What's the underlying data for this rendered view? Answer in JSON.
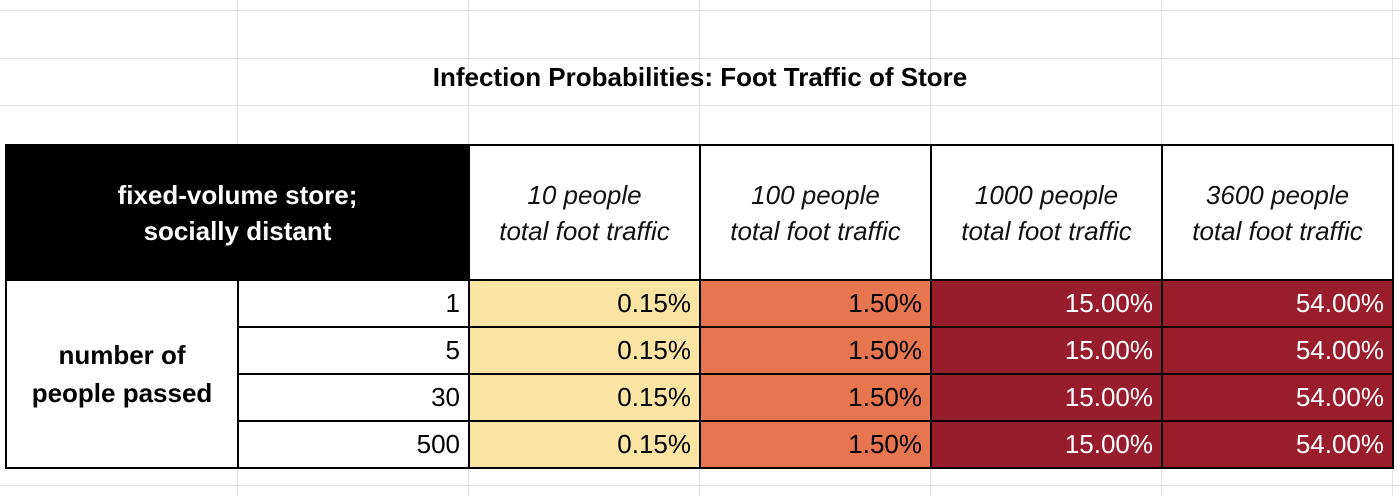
{
  "title": "Infection Probabilities: Foot Traffic of Store",
  "corner_header": "fixed-volume store;\nsocially distant",
  "column_headers": [
    "10 people\ntotal foot traffic",
    "100 people\ntotal foot traffic",
    "1000 people\ntotal foot traffic",
    "3600 people\ntotal foot traffic"
  ],
  "row_group_label": "number of\npeople passed",
  "rows": [
    {
      "people_passed": "1",
      "values": [
        "0.15%",
        "1.50%",
        "15.00%",
        "54.00%"
      ]
    },
    {
      "people_passed": "5",
      "values": [
        "0.15%",
        "1.50%",
        "15.00%",
        "54.00%"
      ]
    },
    {
      "people_passed": "30",
      "values": [
        "0.15%",
        "1.50%",
        "15.00%",
        "54.00%"
      ]
    },
    {
      "people_passed": "500",
      "values": [
        "0.15%",
        "1.50%",
        "15.00%",
        "54.00%"
      ]
    }
  ],
  "colors": {
    "col_10": "#f9e4a3",
    "col_100": "#e67550",
    "col_1000": "#971c2c",
    "col_3600": "#9a1d2b",
    "header_bg": "#000000"
  }
}
